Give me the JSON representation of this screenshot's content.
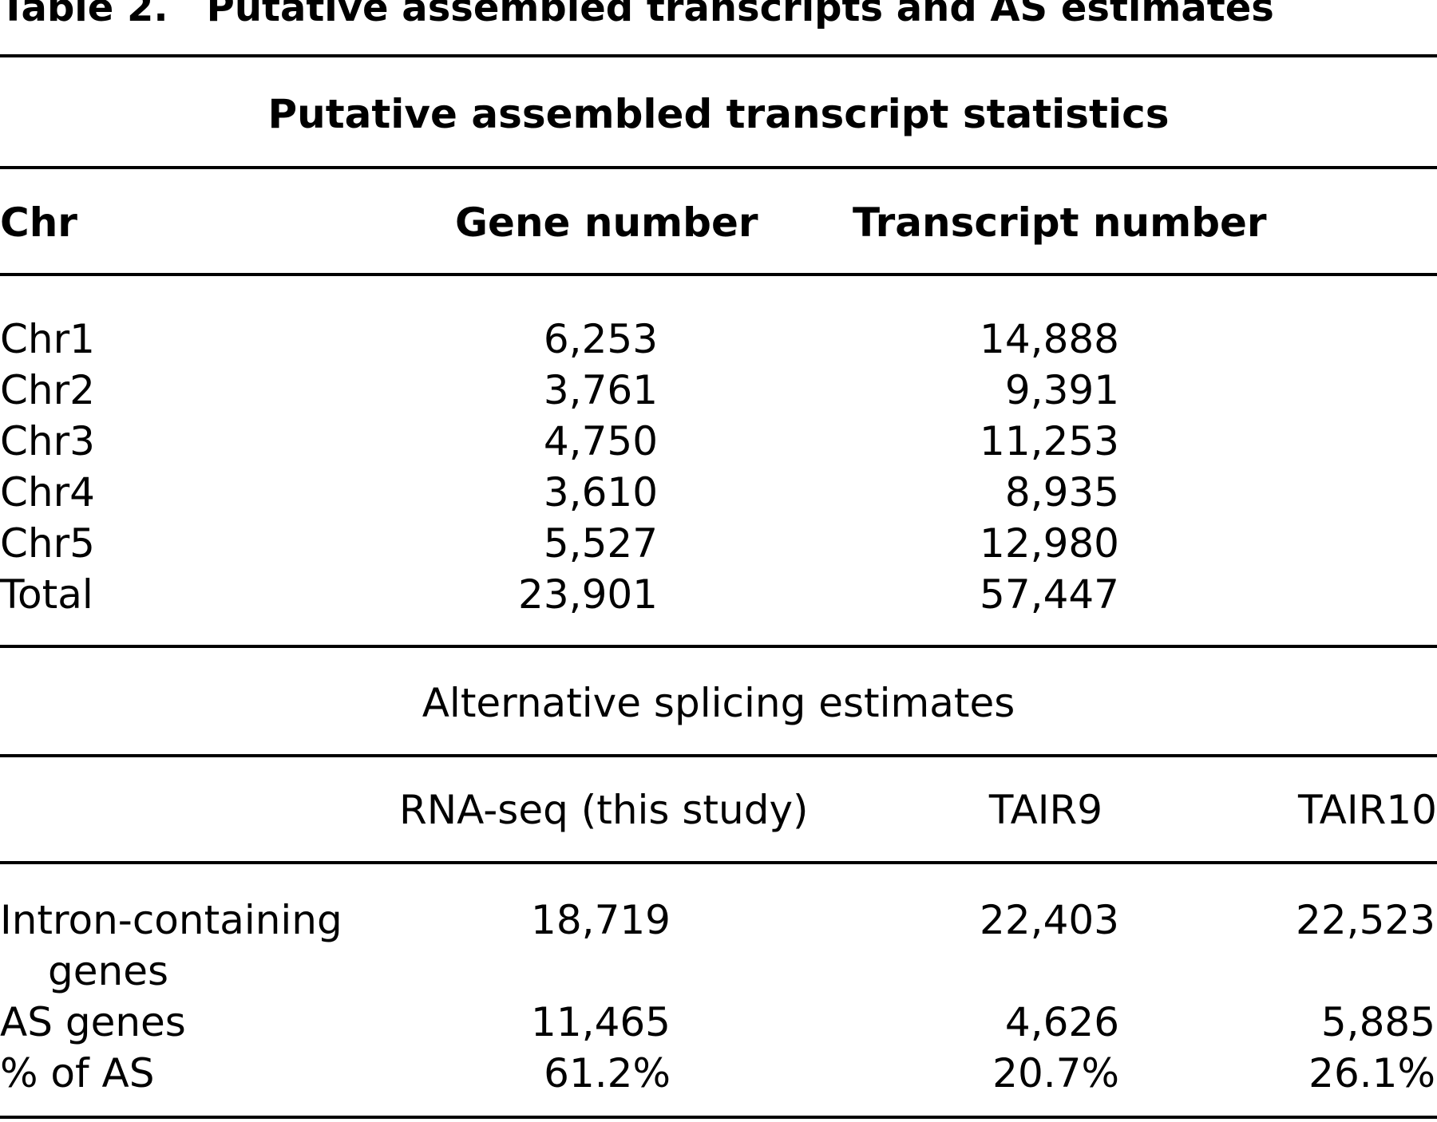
{
  "table": {
    "label": "Table 2.",
    "caption": "Putative assembled transcripts and AS estimates"
  },
  "section1": {
    "heading": "Putative assembled transcript statistics",
    "columns": [
      "Chr",
      "Gene number",
      "Transcript number"
    ],
    "rows": [
      {
        "chr": "Chr1",
        "genes": "6,253",
        "transcripts": "14,888"
      },
      {
        "chr": "Chr2",
        "genes": "3,761",
        "transcripts": "9,391"
      },
      {
        "chr": "Chr3",
        "genes": "4,750",
        "transcripts": "11,253"
      },
      {
        "chr": "Chr4",
        "genes": "3,610",
        "transcripts": "8,935"
      },
      {
        "chr": "Chr5",
        "genes": "5,527",
        "transcripts": "12,980"
      },
      {
        "chr": "Total",
        "genes": "23,901",
        "transcripts": "57,447"
      }
    ]
  },
  "section2": {
    "heading": "Alternative splicing estimates",
    "columns": [
      "RNA-seq (this study)",
      "TAIR9",
      "TAIR10"
    ],
    "rows": [
      {
        "label": "Intron-containing",
        "label2": "genes",
        "rnaseq": "18,719",
        "tair9": "22,403",
        "tair10": "22,523"
      },
      {
        "label": "AS genes",
        "rnaseq": "11,465",
        "tair9": "4,626",
        "tair10": "5,885"
      },
      {
        "label": "% of AS",
        "rnaseq": "61.2%",
        "tair9": "20.7%",
        "tair10": "26.1%"
      }
    ]
  }
}
